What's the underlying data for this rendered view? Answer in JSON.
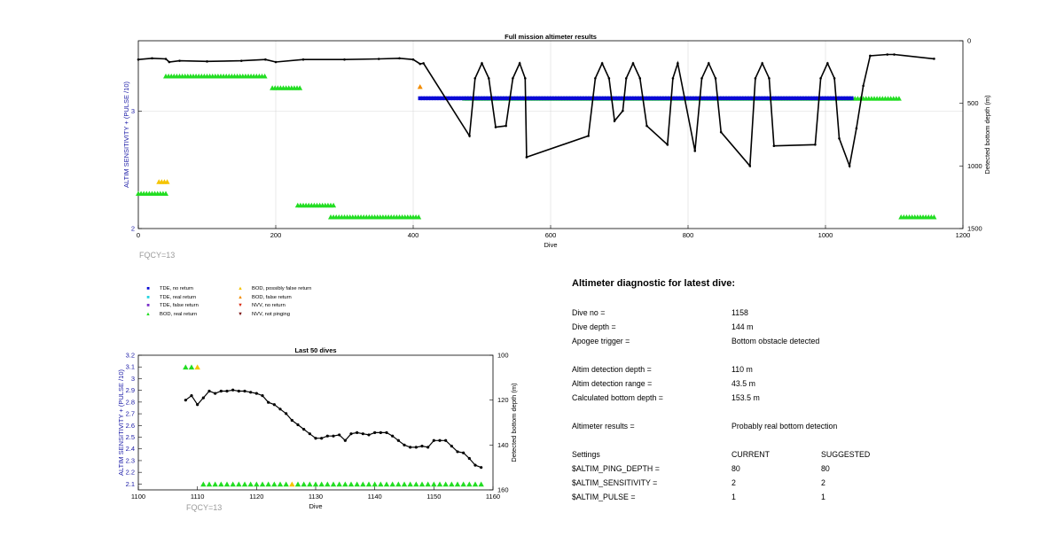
{
  "chart_data": [
    {
      "type": "scatter",
      "title": "Full mission altimeter results",
      "xlabel": "Dive",
      "ylabel_left": "ALTIM SENSITIVITY + (PULSE /10)",
      "ylabel_right": "Detected bottom depth (m)",
      "xlim": [
        0,
        1200
      ],
      "ylim_left": [
        2,
        3.6
      ],
      "ylim_right_reversed": [
        0,
        1500
      ],
      "x_ticks": [
        "0",
        "200",
        "400",
        "600",
        "800",
        "1000",
        "1200"
      ],
      "y_left_ticks": [
        "2",
        "3"
      ],
      "y_right_ticks": [
        "0",
        "500",
        "1000",
        "1500"
      ],
      "grid": true,
      "footnote": "FQCY=13",
      "depth_series": {
        "name": "Detected bottom depth",
        "points": [
          [
            0,
            150
          ],
          [
            20,
            140
          ],
          [
            40,
            145
          ],
          [
            45,
            170
          ],
          [
            60,
            160
          ],
          [
            100,
            165
          ],
          [
            150,
            160
          ],
          [
            185,
            150
          ],
          [
            200,
            170
          ],
          [
            240,
            150
          ],
          [
            300,
            150
          ],
          [
            350,
            145
          ],
          [
            380,
            140
          ],
          [
            400,
            150
          ],
          [
            410,
            185
          ],
          [
            415,
            180
          ],
          [
            482,
            760
          ],
          [
            490,
            300
          ],
          [
            500,
            180
          ],
          [
            510,
            300
          ],
          [
            520,
            690
          ],
          [
            535,
            680
          ],
          [
            545,
            300
          ],
          [
            555,
            180
          ],
          [
            563,
            300
          ],
          [
            565,
            930
          ],
          [
            655,
            760
          ],
          [
            665,
            300
          ],
          [
            675,
            180
          ],
          [
            685,
            300
          ],
          [
            693,
            640
          ],
          [
            705,
            560
          ],
          [
            710,
            300
          ],
          [
            720,
            180
          ],
          [
            730,
            300
          ],
          [
            740,
            680
          ],
          [
            770,
            830
          ],
          [
            778,
            300
          ],
          [
            785,
            180
          ],
          [
            810,
            880
          ],
          [
            820,
            300
          ],
          [
            830,
            180
          ],
          [
            840,
            300
          ],
          [
            848,
            730
          ],
          [
            890,
            1000
          ],
          [
            898,
            300
          ],
          [
            908,
            180
          ],
          [
            918,
            300
          ],
          [
            925,
            840
          ],
          [
            985,
            830
          ],
          [
            993,
            300
          ],
          [
            1003,
            180
          ],
          [
            1013,
            300
          ],
          [
            1020,
            780
          ],
          [
            1035,
            1000
          ],
          [
            1045,
            700
          ],
          [
            1055,
            360
          ],
          [
            1065,
            120
          ],
          [
            1090,
            110
          ],
          [
            1100,
            110
          ],
          [
            1158,
            144
          ]
        ]
      },
      "markers": [
        {
          "category": "BOD, real return",
          "y": 3.3,
          "x_range": [
            40,
            185
          ]
        },
        {
          "category": "BOD, real return",
          "y": 3.2,
          "x_range": [
            195,
            235
          ]
        },
        {
          "category": "BOD, real return",
          "y": 2.3,
          "x_range": [
            0,
            40
          ]
        },
        {
          "category": "BOD, real return",
          "y": 2.2,
          "x_range": [
            232,
            285
          ]
        },
        {
          "category": "BOD, real return",
          "y": 2.1,
          "x_range": [
            280,
            410
          ]
        },
        {
          "category": "BOD, real return",
          "y": 2.1,
          "x_range": [
            1110,
            1160
          ]
        },
        {
          "category": "BOD, real return",
          "y": 3.11,
          "x_range": [
            475,
            1110
          ]
        },
        {
          "category": "TDE, no return",
          "y": 3.11,
          "x_range": [
            410,
            1040
          ]
        },
        {
          "category": "BOD, possibly false return",
          "y": 2.4,
          "x_range": [
            30,
            45
          ]
        },
        {
          "category": "BOD, false return",
          "y": 3.21,
          "x_range": [
            410,
            412
          ]
        }
      ]
    },
    {
      "type": "scatter",
      "title": "Last 50 dives",
      "xlabel": "Dive",
      "ylabel_left": "ALTIM SENSITIVITY + (PULSE /10)",
      "ylabel_right": "Detected bottom depth (m)",
      "xlim": [
        1100,
        1160
      ],
      "ylim_left": [
        2.05,
        3.2
      ],
      "ylim_right_reversed": [
        100,
        160
      ],
      "x_ticks": [
        "1100",
        "1110",
        "1120",
        "1130",
        "1140",
        "1150",
        "1160"
      ],
      "y_left_ticks": [
        "2.1",
        "2.2",
        "2.3",
        "2.4",
        "2.5",
        "2.6",
        "2.7",
        "2.8",
        "2.9",
        "3",
        "3.1",
        "3.2"
      ],
      "y_right_ticks": [
        "100",
        "120",
        "140",
        "160"
      ],
      "grid": false,
      "footnote": "FQCY=13",
      "depth_series": {
        "name": "Detected bottom depth",
        "x": [
          1108,
          1109,
          1110,
          1111,
          1112,
          1113,
          1114,
          1115,
          1116,
          1117,
          1118,
          1119,
          1120,
          1121,
          1122,
          1123,
          1124,
          1125,
          1126,
          1127,
          1128,
          1129,
          1130,
          1131,
          1132,
          1133,
          1134,
          1135,
          1136,
          1137,
          1138,
          1139,
          1140,
          1141,
          1142,
          1143,
          1144,
          1145,
          1146,
          1147,
          1148,
          1149,
          1150,
          1151,
          1152,
          1153,
          1154,
          1155,
          1156,
          1157,
          1158
        ],
        "y": [
          120,
          118,
          122,
          119,
          116,
          117,
          116,
          116,
          115.5,
          116,
          116,
          116.5,
          117,
          118,
          121,
          122,
          124,
          126,
          129,
          131,
          133,
          135,
          137,
          137,
          136,
          136,
          135.5,
          138,
          135,
          134.5,
          135,
          135.5,
          134.5,
          134.5,
          134.5,
          136,
          138,
          140,
          141,
          141,
          140.5,
          141,
          138,
          138,
          138,
          140.5,
          143,
          143.5,
          146,
          149,
          150
        ]
      },
      "markers": [
        {
          "category": "BOD, real return",
          "y": 3.1,
          "x": [
            1108,
            1109
          ]
        },
        {
          "category": "BOD, possibly false return",
          "y": 3.1,
          "x": [
            1110
          ]
        },
        {
          "category": "BOD, real return",
          "y": 2.1,
          "x": [
            1111,
            1112,
            1113,
            1114,
            1115,
            1116,
            1117,
            1118,
            1119,
            1120,
            1121,
            1122,
            1123,
            1124,
            1125,
            1127,
            1128,
            1129,
            1130,
            1131,
            1132,
            1133,
            1134,
            1135,
            1136,
            1137,
            1138,
            1139,
            1140,
            1141,
            1142,
            1143,
            1144,
            1145,
            1146,
            1147,
            1148,
            1149,
            1150,
            1151,
            1152,
            1153,
            1154,
            1155,
            1156,
            1157,
            1158
          ]
        },
        {
          "category": "BOD, possibly false return",
          "y": 2.1,
          "x": [
            1126
          ]
        }
      ]
    }
  ],
  "legend": [
    {
      "symbol": "square",
      "color": "#0a0ad6",
      "label": "TDE, no return"
    },
    {
      "symbol": "square",
      "color": "#22d3e0",
      "label": "TDE, real return"
    },
    {
      "symbol": "square",
      "color": "#7a2fc8",
      "label": "TDE, false return"
    },
    {
      "symbol": "triangle-up",
      "color": "#22dd22",
      "label": "BOD, real return"
    },
    {
      "symbol": "triangle-up",
      "color": "#f5c400",
      "label": "BOD, possibly false return"
    },
    {
      "symbol": "triangle-up",
      "color": "#f28c00",
      "label": "BOD, false return"
    },
    {
      "symbol": "triangle-down",
      "color": "#d82a12",
      "label": "NVV, no return"
    },
    {
      "symbol": "triangle-down",
      "color": "#7a1010",
      "label": "NVV, not pinging"
    }
  ],
  "colors": {
    "depth_line": "#000000",
    "bod_real": "#22dd22",
    "bod_possibly_false": "#f5c400",
    "bod_false": "#f28c00",
    "tde_no_return": "#0a0ad6",
    "tde_real_return": "#22d3e0",
    "axis_label_blue": "#1a1aa6"
  },
  "diagnostic": {
    "title": "Altimeter diagnostic for latest dive:",
    "rows": [
      {
        "label": "Dive no =",
        "value": "1158"
      },
      {
        "label": "Dive depth =",
        "value": "144 m"
      },
      {
        "label": "Apogee trigger =",
        "value": "Bottom obstacle detected"
      },
      {
        "label": "Altim detection depth =",
        "value": "110 m"
      },
      {
        "label": "Altim detection range =",
        "value": "43.5 m"
      },
      {
        "label": "Calculated bottom depth =",
        "value": "153.5 m"
      },
      {
        "label": "Altimeter results =",
        "value": "Probably real bottom detection"
      }
    ],
    "settings_header": {
      "label": "Settings",
      "current": "CURRENT",
      "suggested": "SUGGESTED"
    },
    "settings": [
      {
        "name": "$ALTIM_PING_DEPTH =",
        "current": "80",
        "suggested": "80"
      },
      {
        "name": "$ALTIM_SENSITIVITY =",
        "current": "2",
        "suggested": "2"
      },
      {
        "name": "$ALTIM_PULSE =",
        "current": "1",
        "suggested": "1"
      }
    ]
  }
}
